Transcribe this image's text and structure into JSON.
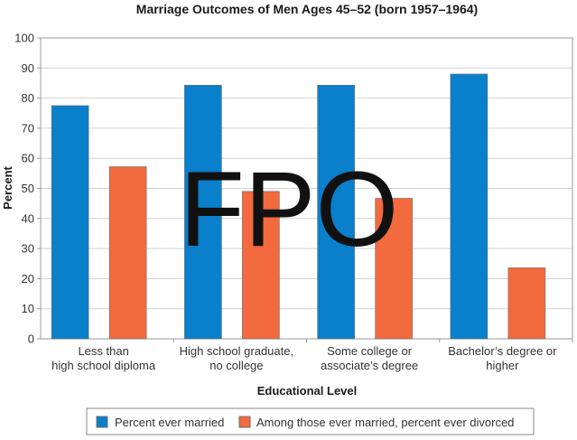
{
  "chart_data": {
    "type": "bar",
    "title": "Marriage Outcomes of Men Ages 45–52 (born 1957–1964)",
    "xlabel": "Educational Level",
    "ylabel": "Percent",
    "ylim": [
      0,
      100
    ],
    "yticks": [
      "0",
      "10",
      "20",
      "30",
      "40",
      "50",
      "60",
      "70",
      "80",
      "90",
      "100"
    ],
    "categories": [
      [
        "Less than",
        "high school diploma"
      ],
      [
        "High school graduate,",
        "no college"
      ],
      [
        "Some college or",
        "associate’s degree"
      ],
      [
        "Bachelor’s degree or",
        "higher"
      ]
    ],
    "series": [
      {
        "name": "Percent ever married",
        "color": "#0a7fcb",
        "values": [
          77.5,
          84.3,
          84.3,
          88.0
        ]
      },
      {
        "name": "Among those ever married, percent ever divorced",
        "color": "#f26a3d",
        "values": [
          57.2,
          49.0,
          46.7,
          23.6
        ]
      }
    ],
    "grid": true,
    "legend_position": "bottom",
    "watermark": "FPO"
  }
}
